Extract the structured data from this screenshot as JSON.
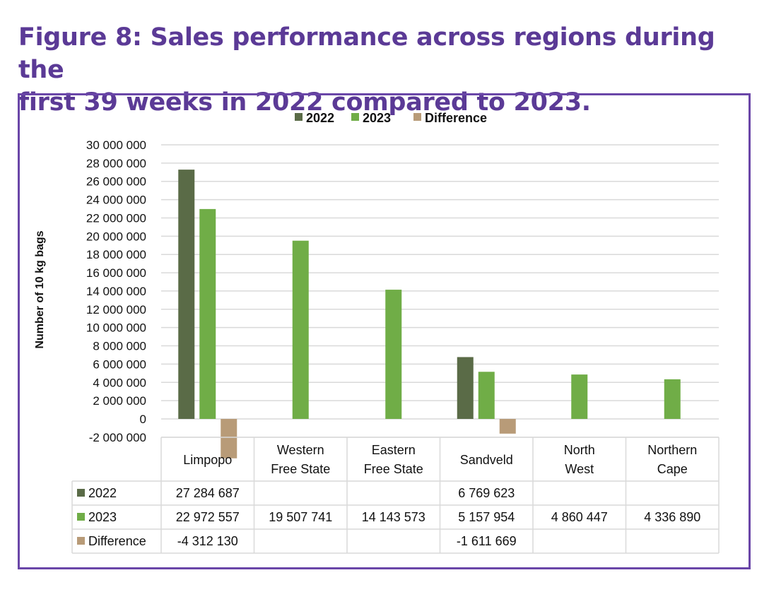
{
  "title_line1": "Figure 8: Sales performance across regions during the",
  "title_line2": "first 39 weeks in 2022 compared to 2023.",
  "chart_data": {
    "type": "bar",
    "title": "Figure 8: Sales performance across regions during the first 39 weeks in 2022 compared to 2023.",
    "xlabel": "",
    "ylabel": "Number of 10 kg bags",
    "ylim": [
      -2000000,
      30000000
    ],
    "ytick_step": 2000000,
    "ytick_labels": [
      "-2 000 000",
      "0",
      "2 000 000",
      "4 000 000",
      "6 000 000",
      "8 000 000",
      "10 000 000",
      "12 000 000",
      "14 000 000",
      "16 000 000",
      "18 000 000",
      "20 000 000",
      "22 000 000",
      "24 000 000",
      "26 000 000",
      "28 000 000",
      "30 000 000"
    ],
    "grid": true,
    "legend_position": "top-center",
    "categories": [
      "Limpopo",
      "Western Free State",
      "Eastern Free State",
      "Sandveld",
      "North West",
      "Northern Cape"
    ],
    "category_lines": [
      [
        "Limpopo"
      ],
      [
        "Western",
        "Free State"
      ],
      [
        "Eastern",
        "Free State"
      ],
      [
        "Sandveld"
      ],
      [
        "North",
        "West"
      ],
      [
        "Northern",
        "Cape"
      ]
    ],
    "series": [
      {
        "name": "2022",
        "color": "#5a6b47",
        "values": [
          27284687,
          null,
          null,
          6769623,
          null,
          null
        ],
        "labels": [
          "27 284 687",
          "",
          "",
          "6 769 623",
          "",
          ""
        ]
      },
      {
        "name": "2023",
        "color": "#70ad47",
        "values": [
          22972557,
          19507741,
          14143573,
          5157954,
          4860447,
          4336890
        ],
        "labels": [
          "22 972 557",
          "19 507 741",
          "14 143 573",
          "5 157 954",
          "4 860 447",
          "4 336 890"
        ]
      },
      {
        "name": "Difference",
        "color": "#b89b78",
        "values": [
          -4312130,
          null,
          null,
          -1611669,
          null,
          null
        ],
        "labels": [
          "-4 312 130",
          "",
          "",
          "-1 611 669",
          "",
          ""
        ]
      }
    ],
    "data_table": true
  }
}
